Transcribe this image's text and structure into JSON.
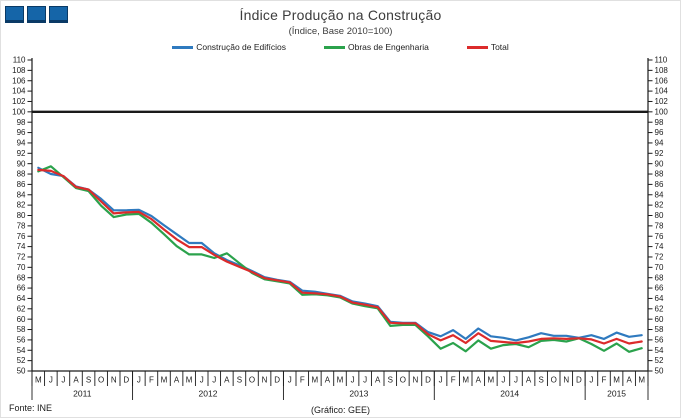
{
  "header": {
    "title": "Índice Produção na Construção",
    "subtitle": "(Índice, Base 2010=100)"
  },
  "footer": {
    "source": "Fonte: INE",
    "credit": "(Gráfico: GEE)"
  },
  "colors": {
    "logo_blue": "#1565a8",
    "reference_line": "#1a1a1a"
  },
  "chart_data": {
    "type": "line",
    "title": "Índice Produção na Construção",
    "subtitle": "(Índice, Base 2010=100)",
    "ylim": [
      50,
      110
    ],
    "ytick_step": 2,
    "reference_line": 100,
    "grid": false,
    "legend_position": "top",
    "months": [
      "M",
      "J",
      "J",
      "A",
      "S",
      "O",
      "N",
      "D",
      "J",
      "F",
      "M",
      "A",
      "M",
      "J",
      "J",
      "A",
      "S",
      "O",
      "N",
      "D",
      "J",
      "F",
      "M",
      "A",
      "M",
      "J",
      "J",
      "A",
      "S",
      "O",
      "N",
      "D",
      "J",
      "F",
      "M",
      "A",
      "M",
      "J",
      "J",
      "A",
      "S",
      "O",
      "N",
      "D",
      "J",
      "F",
      "M",
      "A",
      "M"
    ],
    "year_groups": [
      {
        "label": "2011",
        "count": 8
      },
      {
        "label": "2012",
        "count": 12
      },
      {
        "label": "2013",
        "count": 12
      },
      {
        "label": "2014",
        "count": 12
      },
      {
        "label": "2015",
        "count": 5
      }
    ],
    "series": [
      {
        "name": "Construção de Edifícios",
        "color": "#2f7abf",
        "values": [
          89.2,
          88.0,
          87.6,
          85.6,
          85.0,
          83.2,
          81.0,
          81.0,
          81.1,
          79.9,
          78.1,
          76.4,
          74.7,
          74.7,
          72.7,
          71.4,
          70.4,
          69.3,
          68.1,
          67.6,
          67.2,
          65.5,
          65.3,
          64.9,
          64.5,
          63.4,
          63.0,
          62.5,
          59.5,
          59.3,
          59.3,
          57.5,
          56.7,
          57.9,
          56.2,
          58.2,
          56.7,
          56.4,
          55.9,
          56.5,
          57.3,
          56.8,
          56.8,
          56.4,
          56.9,
          56.2,
          57.4,
          56.6,
          56.9
        ]
      },
      {
        "name": "Obras de Engenharia",
        "color": "#2ba24c",
        "values": [
          88.5,
          89.5,
          87.4,
          85.3,
          84.7,
          81.9,
          79.7,
          80.2,
          80.3,
          78.6,
          76.4,
          74.1,
          72.5,
          72.5,
          71.8,
          72.7,
          70.8,
          68.9,
          67.7,
          67.3,
          66.9,
          64.7,
          64.8,
          64.6,
          64.2,
          63.0,
          62.5,
          62.1,
          58.7,
          58.9,
          58.9,
          56.7,
          54.3,
          55.4,
          53.8,
          55.9,
          54.3,
          55.0,
          55.2,
          54.6,
          55.8,
          56.0,
          55.7,
          56.3,
          55.2,
          53.9,
          55.3,
          53.7,
          54.4
        ]
      },
      {
        "name": "Total",
        "color": "#dc2b2b",
        "values": [
          88.8,
          88.6,
          87.6,
          85.5,
          85.0,
          82.7,
          80.4,
          80.6,
          80.7,
          79.3,
          77.3,
          75.4,
          73.9,
          73.9,
          72.4,
          71.1,
          70.1,
          69.1,
          67.9,
          67.5,
          67.1,
          65.1,
          65.0,
          64.8,
          64.4,
          63.2,
          62.8,
          62.3,
          59.3,
          59.2,
          59.2,
          57.1,
          55.9,
          56.9,
          55.4,
          57.3,
          55.8,
          55.6,
          55.4,
          55.7,
          56.2,
          56.3,
          56.2,
          56.3,
          56.1,
          55.3,
          56.2,
          55.3,
          55.7
        ]
      }
    ]
  }
}
